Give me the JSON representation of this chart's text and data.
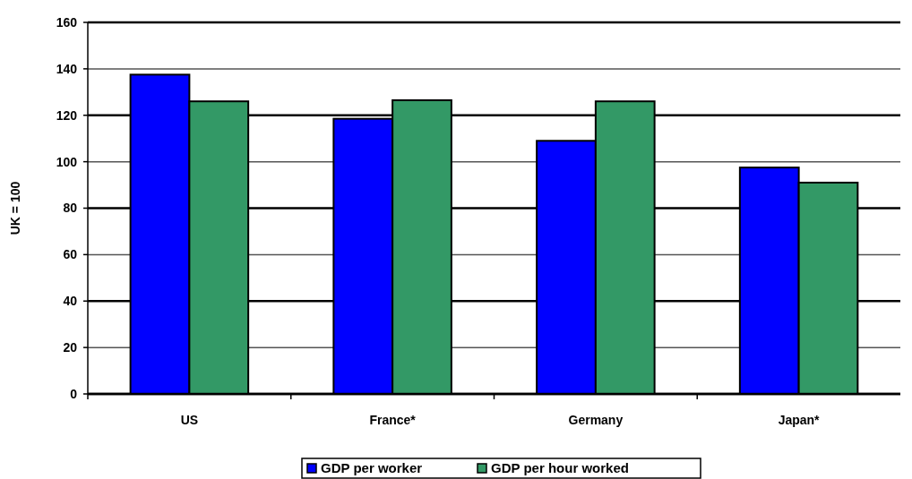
{
  "chart_data": {
    "type": "bar",
    "ylabel": "UK = 100",
    "categories": [
      "US",
      "France*",
      "Germany",
      "Japan*"
    ],
    "series": [
      {
        "name": "GDP per worker",
        "color": "#0000ff",
        "values": [
          137.5,
          118.5,
          109,
          97.5
        ]
      },
      {
        "name": "GDP per hour worked",
        "color": "#339966",
        "values": [
          126,
          126.5,
          126,
          91
        ]
      }
    ],
    "ylim": [
      0,
      160
    ],
    "yticks": [
      0,
      20,
      40,
      60,
      80,
      100,
      120,
      140,
      160
    ],
    "grid": "y",
    "legend": "bottom"
  }
}
